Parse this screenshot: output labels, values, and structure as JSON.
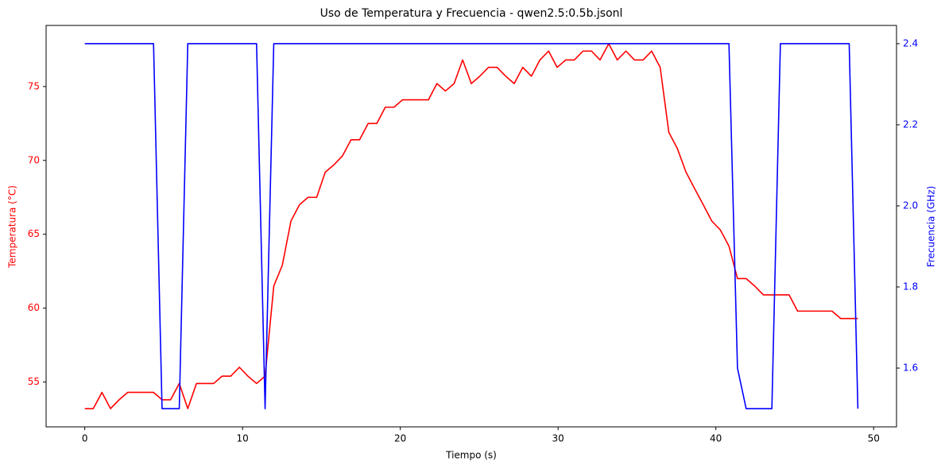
{
  "chart_data": {
    "type": "line",
    "title": "Uso de Temperatura y Frecuencia - qwen2.5:0.5b.jsonl",
    "xlabel": "Tiempo (s)",
    "ylabel": "Temperatura (°C)",
    "y2label": "Frecuencia (GHz)",
    "ylabel_color": "#ff0000",
    "y2label_color": "#0000ff",
    "x": [
      0,
      0.54,
      1.09,
      1.63,
      2.18,
      2.72,
      3.27,
      3.81,
      4.36,
      4.9,
      5.44,
      5.99,
      6.53,
      7.08,
      7.62,
      8.17,
      8.71,
      9.25,
      9.8,
      10.34,
      10.89,
      11.43,
      11.98,
      12.52,
      13.07,
      13.61,
      14.15,
      14.7,
      15.24,
      15.79,
      16.33,
      16.88,
      17.42,
      17.96,
      18.51,
      19.05,
      19.6,
      20.14,
      20.69,
      21.23,
      21.78,
      22.32,
      22.86,
      23.41,
      23.95,
      24.5,
      25.04,
      25.59,
      26.13,
      26.68,
      27.22,
      27.76,
      28.31,
      28.85,
      29.4,
      29.94,
      30.49,
      31.03,
      31.58,
      32.12,
      32.66,
      33.21,
      33.75,
      34.3,
      34.84,
      35.39,
      35.93,
      36.47,
      37.02,
      37.56,
      38.11,
      38.65,
      39.2,
      39.74,
      40.28,
      40.83,
      41.37,
      41.92,
      42.46,
      43.01,
      43.55,
      44.09,
      44.64,
      45.18,
      45.73,
      46.27,
      46.82,
      47.36,
      47.91,
      48.45,
      49
    ],
    "series": [
      {
        "name": "Temperatura",
        "color": "#ff0000",
        "axis": "y",
        "values": [
          53.2,
          53.2,
          54.3,
          53.2,
          53.8,
          54.3,
          54.3,
          54.3,
          54.3,
          53.8,
          53.8,
          54.9,
          53.2,
          54.9,
          54.9,
          54.9,
          55.4,
          55.4,
          56.0,
          55.4,
          54.9,
          55.4,
          61.5,
          62.9,
          65.9,
          67.0,
          67.5,
          67.5,
          69.2,
          69.7,
          70.3,
          71.4,
          71.4,
          72.5,
          72.5,
          73.6,
          73.6,
          74.1,
          74.1,
          74.1,
          74.1,
          75.2,
          74.7,
          75.2,
          76.8,
          75.2,
          75.7,
          76.3,
          76.3,
          75.7,
          75.2,
          76.3,
          75.7,
          76.8,
          77.4,
          76.3,
          76.8,
          76.8,
          77.4,
          77.4,
          76.8,
          77.9,
          76.8,
          77.4,
          76.8,
          76.8,
          77.4,
          76.3,
          71.9,
          70.8,
          69.2,
          68.1,
          67.0,
          65.9,
          65.3,
          64.2,
          62.0,
          62.0,
          61.5,
          60.9,
          60.9,
          60.9,
          60.9,
          59.8,
          59.8,
          59.8,
          59.8,
          59.8,
          59.3,
          59.3,
          59.3
        ]
      },
      {
        "name": "Frecuencia",
        "color": "#0000ff",
        "axis": "y2",
        "values": [
          2.4,
          2.4,
          2.4,
          2.4,
          2.4,
          2.4,
          2.4,
          2.4,
          2.4,
          1.5,
          1.5,
          1.5,
          2.4,
          2.4,
          2.4,
          2.4,
          2.4,
          2.4,
          2.4,
          2.4,
          2.4,
          1.5,
          2.4,
          2.4,
          2.4,
          2.4,
          2.4,
          2.4,
          2.4,
          2.4,
          2.4,
          2.4,
          2.4,
          2.4,
          2.4,
          2.4,
          2.4,
          2.4,
          2.4,
          2.4,
          2.4,
          2.4,
          2.4,
          2.4,
          2.4,
          2.4,
          2.4,
          2.4,
          2.4,
          2.4,
          2.4,
          2.4,
          2.4,
          2.4,
          2.4,
          2.4,
          2.4,
          2.4,
          2.4,
          2.4,
          2.4,
          2.4,
          2.4,
          2.4,
          2.4,
          2.4,
          2.4,
          2.4,
          2.4,
          2.4,
          2.4,
          2.4,
          2.4,
          2.4,
          2.4,
          2.4,
          1.6,
          1.5,
          1.5,
          1.5,
          1.5,
          2.4,
          2.4,
          2.4,
          2.4,
          2.4,
          2.4,
          2.4,
          2.4,
          2.4,
          1.5
        ]
      }
    ],
    "xlim": [
      -2.45,
      51.45
    ],
    "xticks": [
      0,
      10,
      20,
      30,
      40,
      50
    ],
    "ylim": [
      51.965,
      79.135
    ],
    "yticks": [
      55,
      60,
      65,
      70,
      75
    ],
    "y2lim": [
      1.455,
      2.445
    ],
    "y2ticks": [
      1.6,
      1.8,
      {
        "value": 2,
        "label": "2.0"
      },
      2.2,
      2.4
    ],
    "grid": false
  }
}
